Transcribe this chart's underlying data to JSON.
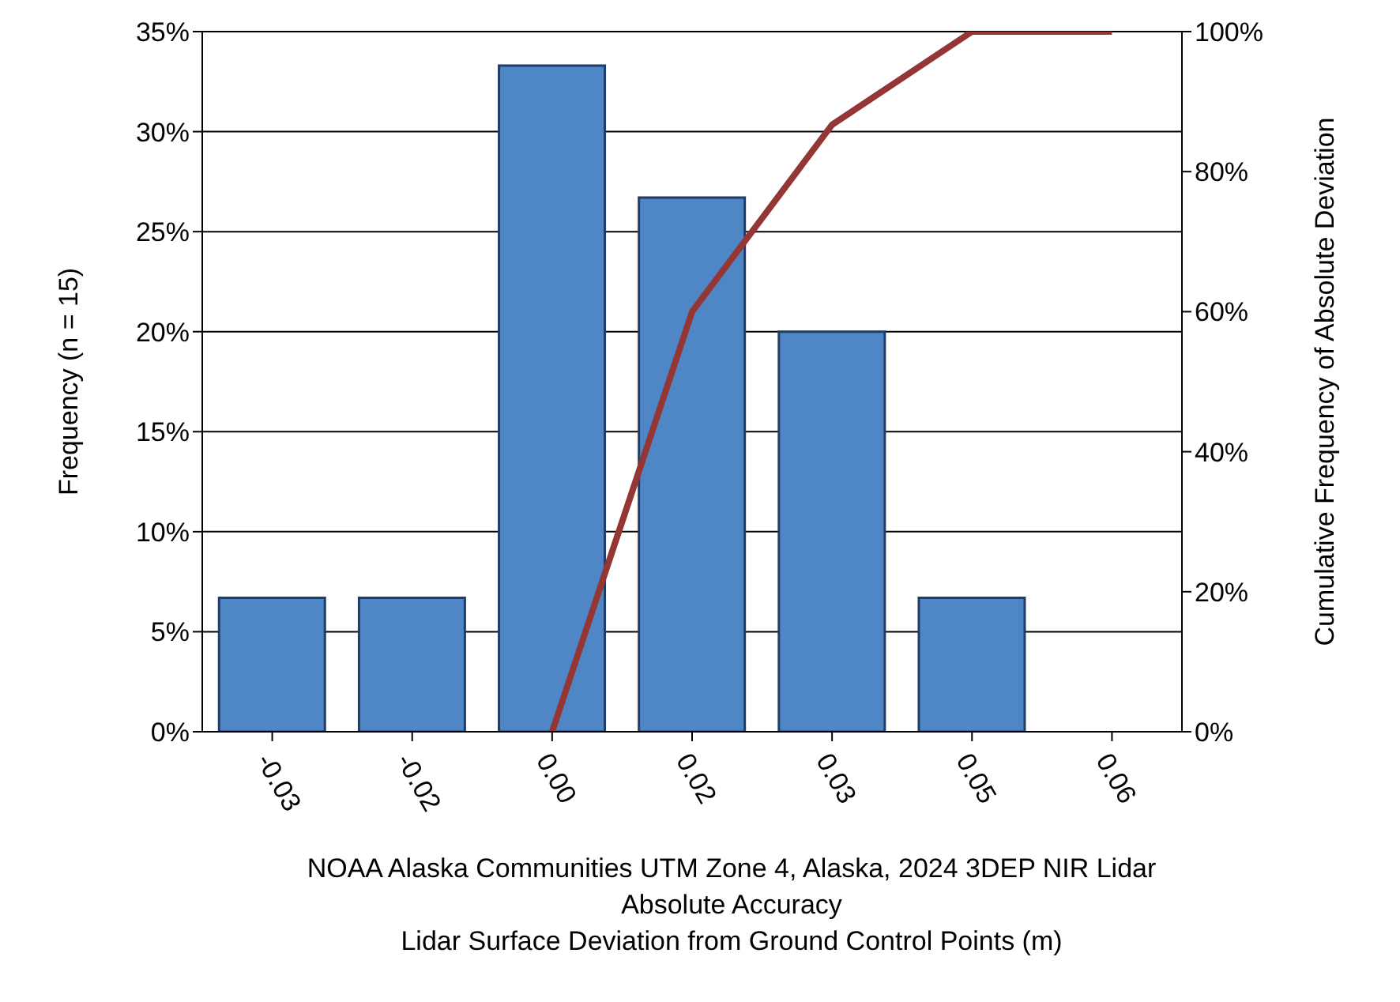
{
  "chart_data": {
    "type": "bar",
    "xlabel": "NOAA Alaska Communities UTM Zone 4, Alaska, 2024 3DEP NIR Lidar\nAbsolute Accuracy\nLidar Surface Deviation from Ground Control Points (m)",
    "ylabel": "Frequency (n = 15)",
    "y2label": "Cumulative Frequency of Absolute Deviation",
    "categories": [
      "-0.03",
      "-0.02",
      "0.00",
      "0.02",
      "0.03",
      "0.05",
      "0.06"
    ],
    "series": [
      {
        "color": "#4f86c6",
        "values": [
          6.7,
          6.7,
          33.3,
          26.7,
          20,
          6.7,
          0
        ]
      },
      {
        "type": "line",
        "axis": "y2",
        "color": "#943634",
        "values": [
          null,
          null,
          0,
          60,
          86.7,
          100,
          100
        ]
      }
    ],
    "ylim": [
      0,
      35
    ],
    "yticks": [
      {
        "value": 0,
        "label": "0%"
      },
      {
        "value": 5,
        "label": "5%"
      },
      {
        "value": 10,
        "label": "10%"
      },
      {
        "value": 15,
        "label": "15%"
      },
      {
        "value": 20,
        "label": "20%"
      },
      {
        "value": 25,
        "label": "25%"
      },
      {
        "value": 30,
        "label": "30%"
      },
      {
        "value": 35,
        "label": "35%"
      }
    ],
    "y2lim": [
      0,
      100
    ],
    "y2ticks": [
      {
        "value": 0,
        "label": "0%"
      },
      {
        "value": 20,
        "label": "20%"
      },
      {
        "value": 40,
        "label": "40%"
      },
      {
        "value": 60,
        "label": "60%"
      },
      {
        "value": 80,
        "label": "80%"
      },
      {
        "value": 100,
        "label": "100%"
      }
    ],
    "grid": "y",
    "legend": false,
    "marker": "none",
    "line_style": "solid"
  }
}
